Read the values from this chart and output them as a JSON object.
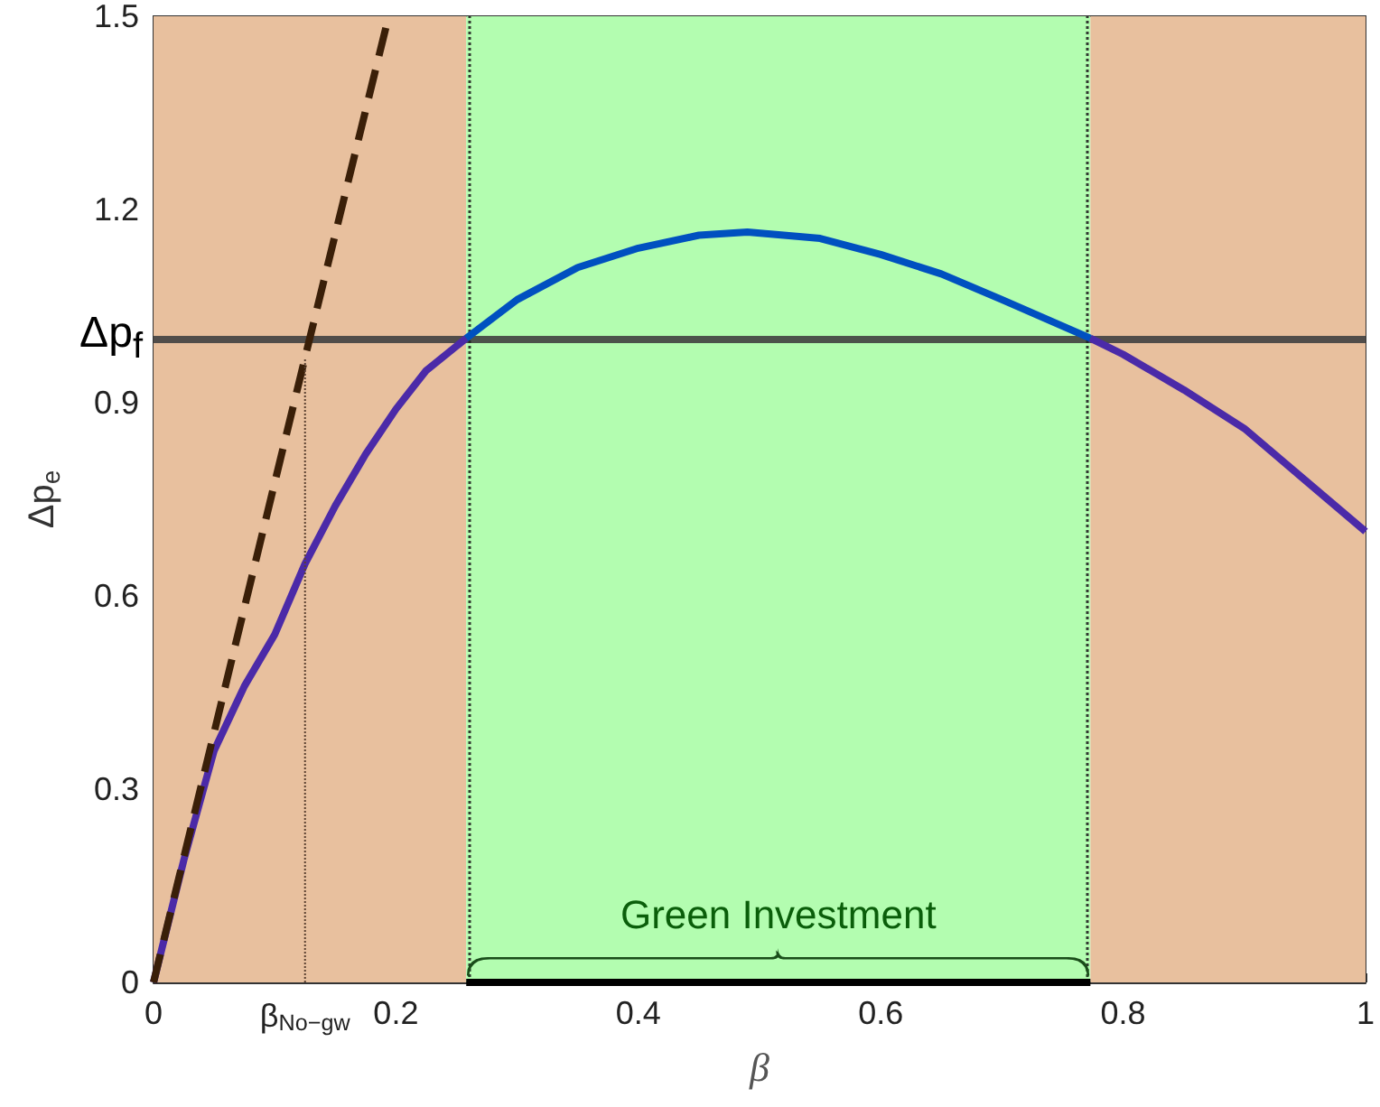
{
  "chart_data": {
    "type": "line",
    "xlabel": "β",
    "ylabel": "Δp$_{e}$",
    "xlim": [
      0,
      1
    ],
    "ylim": [
      0,
      1.5
    ],
    "xticks": [
      0,
      {
        "value": 0.125,
        "label": "β$_{No−gw}$"
      },
      0.2,
      0.4,
      0.6,
      0.8,
      1
    ],
    "yticks": [
      0,
      0.3,
      0.6,
      0.9,
      1.2,
      1.5
    ],
    "grid": false,
    "marker": "none",
    "series": [
      {
        "color": "#4b2aa8",
        "x": [
          0,
          0.025,
          0.05,
          0.075,
          0.1,
          0.125,
          0.15,
          0.175,
          0.2,
          0.225,
          0.258
        ],
        "values": [
          0,
          0.19,
          0.36,
          0.46,
          0.54,
          0.65,
          0.74,
          0.82,
          0.89,
          0.95,
          1.0
        ]
      },
      {
        "color": "#0050c0",
        "x": [
          0.258,
          0.3,
          0.35,
          0.4,
          0.45,
          0.49,
          0.55,
          0.6,
          0.65,
          0.7,
          0.773
        ],
        "values": [
          1.0,
          1.06,
          1.11,
          1.14,
          1.16,
          1.165,
          1.155,
          1.13,
          1.1,
          1.06,
          1.0
        ]
      },
      {
        "color": "#4b2aa8",
        "x": [
          0.773,
          0.8,
          0.85,
          0.9,
          0.95,
          1
        ],
        "values": [
          1.0,
          0.975,
          0.92,
          0.86,
          0.78,
          0.7
        ]
      },
      {
        "color": "#3a1f08",
        "line_style": "dashed",
        "x": [
          0,
          0.125,
          0.194
        ],
        "values": [
          0,
          0.97,
          1.5
        ]
      },
      {
        "color": "#5a4030",
        "line_style": "dotted",
        "x": [
          0.125,
          0.125
        ],
        "values": [
          0,
          0.97
        ]
      },
      {
        "color": "#000000",
        "x": [
          0.258,
          0.773
        ],
        "values": [
          0,
          0
        ]
      }
    ],
    "bands": [
      {
        "axis": "x",
        "from": 0,
        "to": 0.258,
        "color": "#e8c09e"
      },
      {
        "axis": "x",
        "from": 0.258,
        "to": 0.773,
        "color": "#b3fdb0",
        "label": "Green Investment"
      },
      {
        "axis": "x",
        "from": 0.773,
        "to": 1,
        "color": "#e8c09e"
      }
    ],
    "ref_lines": [
      {
        "axis": "y",
        "value": 1.0,
        "label": "Δp$_{f}$",
        "color": "#404040",
        "line_style": "solid"
      },
      {
        "axis": "x",
        "value": 0.258,
        "color": "#222222",
        "line_style": "dotted"
      },
      {
        "axis": "x",
        "value": 0.773,
        "color": "#222222",
        "line_style": "dotted"
      }
    ]
  }
}
